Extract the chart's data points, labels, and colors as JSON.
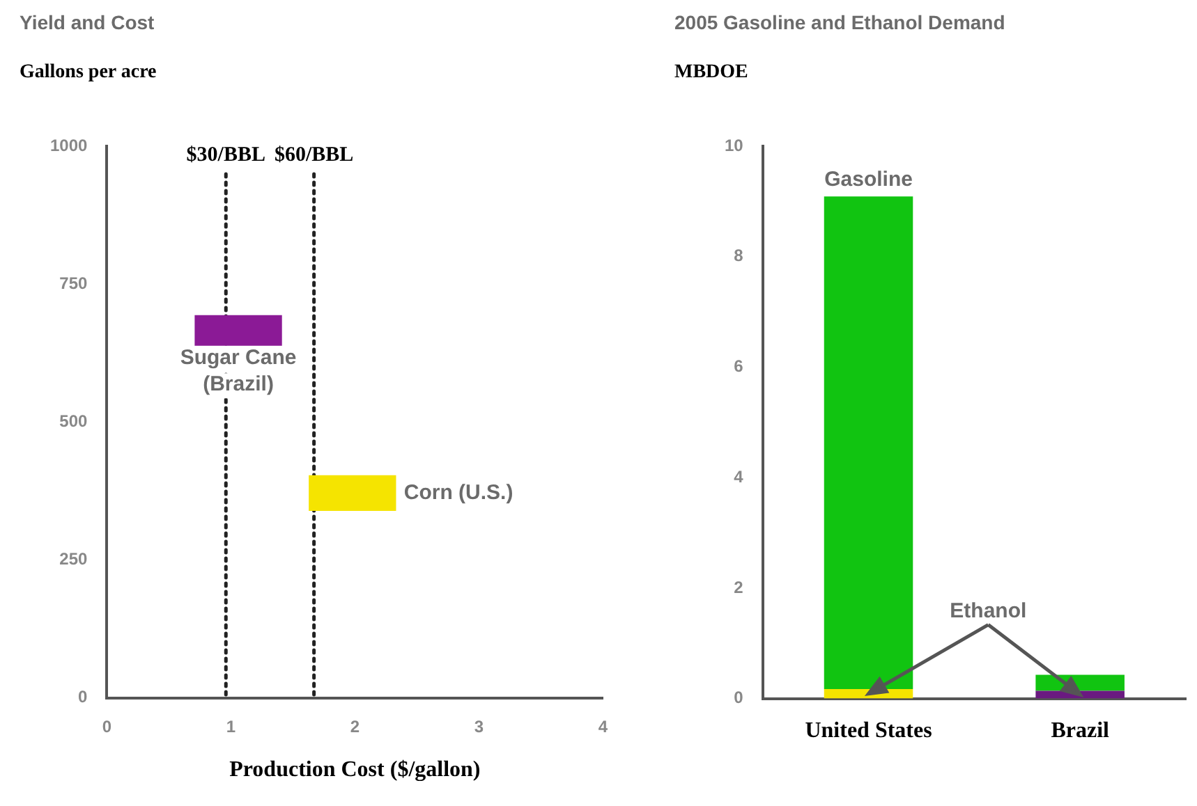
{
  "chart_data": [
    {
      "type": "bar",
      "title": "Yield and Cost",
      "ylabel": "Gallons per acre",
      "xlabel": "Production Cost ($/gallon)",
      "xlim": [
        0,
        4
      ],
      "xticks": [
        0,
        1,
        2,
        3,
        4
      ],
      "ylim": [
        0,
        1000
      ],
      "yticks": [
        0,
        250,
        500,
        750,
        1000
      ],
      "series": [
        {
          "name": "Sugar Cane (Brazil)",
          "color": "#8b1a96",
          "x": [
            1.06
          ],
          "base": [
            639
          ],
          "values": [
            54
          ]
        },
        {
          "name": "Corn (U.S.)",
          "color": "#f5e400",
          "x": [
            1.98
          ],
          "base": [
            340
          ],
          "values": [
            63
          ]
        }
      ],
      "ref_lines": [
        {
          "axis": "x",
          "value": 0.96,
          "label": "$30/BBL",
          "line_style": "dotted",
          "color": "#222222"
        },
        {
          "axis": "x",
          "value": 1.67,
          "label": "$60/BBL",
          "line_style": "dotted",
          "color": "#222222"
        }
      ]
    },
    {
      "type": "bar",
      "stacked": true,
      "title": "2005 Gasoline and Ethanol Demand",
      "ylabel": "MBDOE",
      "categories": [
        "United States",
        "Brazil"
      ],
      "ylim": [
        0,
        10
      ],
      "yticks": [
        0,
        2,
        4,
        6,
        8,
        10
      ],
      "series": [
        {
          "name": "Ethanol",
          "colors": [
            "#f5e400",
            "#6a1a80"
          ],
          "values": [
            0.17,
            0.14
          ]
        },
        {
          "name": "Gasoline",
          "color": "#11c411",
          "values": [
            8.92,
            0.29
          ]
        }
      ]
    }
  ]
}
